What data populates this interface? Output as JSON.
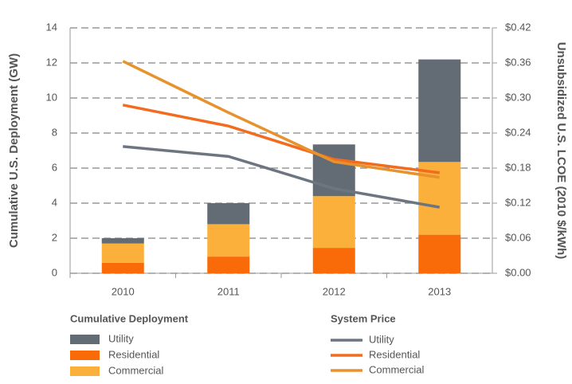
{
  "chart_data": {
    "type": "bar",
    "categories": [
      "2010",
      "2011",
      "2012",
      "2013"
    ],
    "y_label": "Cumulative U.S. Deployment (GW)",
    "y2_label": "Unsubsidized U.S. LCOE (2010 $/kWh)",
    "ylim": [
      0,
      14
    ],
    "yticks": [
      0,
      2,
      4,
      6,
      8,
      10,
      12,
      14
    ],
    "y2lim": [
      0,
      0.42
    ],
    "y2ticks": [
      {
        "value": 0,
        "label": "$0.00"
      },
      {
        "value": 0.06,
        "label": "$0.06"
      },
      {
        "value": 0.12,
        "label": "$0.12"
      },
      {
        "value": 0.18,
        "label": "$0.18"
      },
      {
        "value": 0.24,
        "label": "$0.24"
      },
      {
        "value": 0.3,
        "label": "$0.30"
      },
      {
        "value": 0.36,
        "label": "$0.36"
      },
      {
        "value": 0.42,
        "label": "$0.42"
      }
    ],
    "grid": true,
    "legend_titles": [
      "Cumulative Deployment",
      "System Price"
    ],
    "series": [
      {
        "name": "Utility",
        "type": "bar",
        "color": "#636b75",
        "values": [
          0.3,
          1.2,
          2.95,
          5.85
        ]
      },
      {
        "name": "Residential",
        "type": "bar",
        "color": "#f96a08",
        "values": [
          0.6,
          0.95,
          1.45,
          2.2
        ]
      },
      {
        "name": "Commercial",
        "type": "bar",
        "color": "#fbb03b",
        "values": [
          1.1,
          1.85,
          2.95,
          4.15
        ]
      },
      {
        "name": "Utility",
        "type": "line",
        "axis": "y2",
        "color": "#6d7680",
        "values": [
          0.217,
          0.2,
          0.145,
          0.113
        ]
      },
      {
        "name": "Residential",
        "type": "line",
        "axis": "y2",
        "color": "#f26c1f",
        "values": [
          0.288,
          0.252,
          0.195,
          0.172
        ]
      },
      {
        "name": "Commercial",
        "type": "line",
        "axis": "y2",
        "color": "#e8922e",
        "values": [
          0.363,
          0.275,
          0.191,
          0.164
        ]
      }
    ]
  }
}
